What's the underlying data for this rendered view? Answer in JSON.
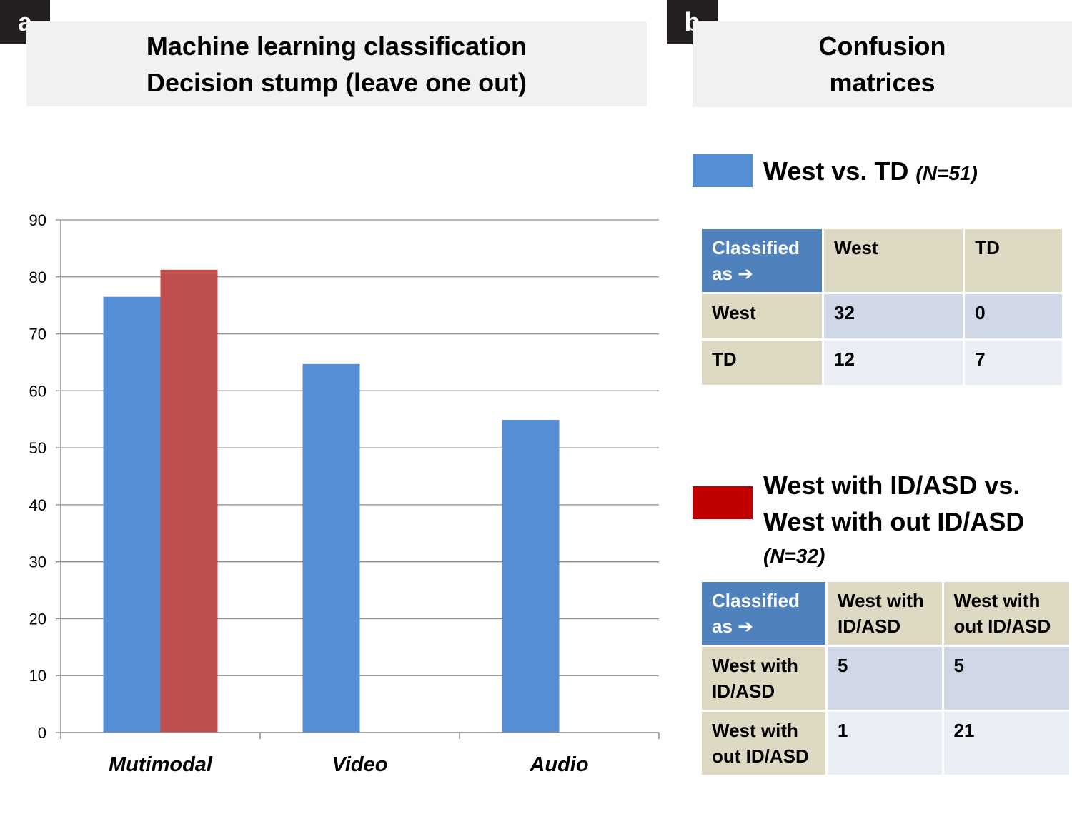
{
  "panel_a": {
    "label": "a",
    "title_line1": "Machine learning classification",
    "title_line2": "Decision stump (leave one out)"
  },
  "panel_b": {
    "label": "b",
    "title_line1": "Confusion",
    "title_line2": "matrices"
  },
  "chart_data": {
    "type": "bar",
    "title": "Machine learning classification Decision stump (leave one out)",
    "categories": [
      "Mutimodal",
      "Video",
      "Audio"
    ],
    "series": [
      {
        "name": "West vs. TD (N=51)",
        "color": "#558ed5",
        "values": [
          76.5,
          64.7,
          54.9
        ]
      },
      {
        "name": "West with ID/ASD vs. West with out ID/ASD (N=32)",
        "color": "#c0504d",
        "values": [
          81.25,
          null,
          null
        ]
      }
    ],
    "ylim": [
      0,
      90
    ],
    "yticks": [
      0,
      10,
      20,
      30,
      40,
      50,
      60,
      70,
      80,
      90
    ],
    "grid": true,
    "xlabel": "",
    "ylabel": ""
  },
  "legend": {
    "item1": {
      "label": "West vs. TD",
      "n": "(N=51)",
      "color": "#558ed5"
    },
    "item2": {
      "label_line1": "West with ID/ASD vs.",
      "label_line2": "West with out ID/ASD",
      "n": "(N=32)",
      "swatch_color": "#c00000"
    }
  },
  "matrix1": {
    "corner_line1": "Classified",
    "corner_line2": "as",
    "arrow": "➔",
    "col_headers": [
      "West",
      "TD"
    ],
    "rows": [
      {
        "label": "West",
        "values": [
          "32",
          "0"
        ]
      },
      {
        "label": "TD",
        "values": [
          "12",
          "7"
        ]
      }
    ]
  },
  "matrix2": {
    "corner_line1": "Classified",
    "corner_line2": "as",
    "arrow": "➔",
    "col_headers": [
      {
        "line1": "West with",
        "line2": "ID/ASD"
      },
      {
        "line1": "West with",
        "line2": "out ID/ASD"
      }
    ],
    "rows": [
      {
        "label_line1": "West with",
        "label_line2": "ID/ASD",
        "values": [
          "5",
          "5"
        ]
      },
      {
        "label_line1": "West with",
        "label_line2": "out ID/ASD",
        "values": [
          "1",
          "21"
        ]
      }
    ]
  }
}
